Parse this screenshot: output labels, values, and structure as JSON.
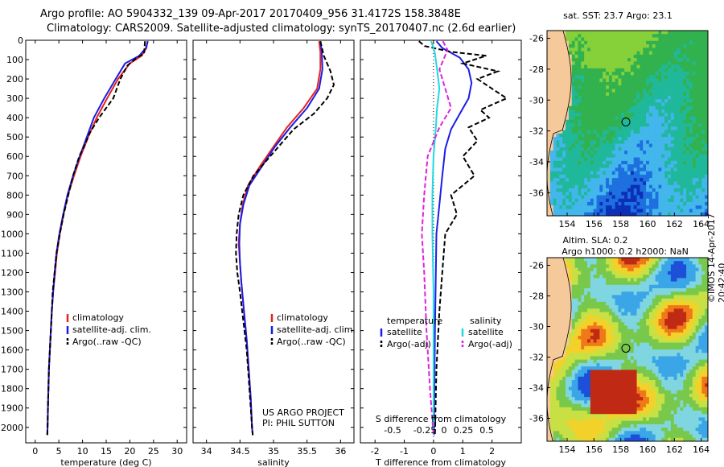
{
  "titles": {
    "line1": "Argo profile: AO 5904332_139 09-Apr-2017 20170409_956 31.4172S 158.3848E",
    "line2": "Climatology: CARS2009. Satellite-adjusted climatology: synTS_20170407.nc (2.6d earlier)"
  },
  "colors": {
    "climatology": "#e8231c",
    "satellite": "#1c1ce8",
    "argo": "#000000",
    "sal_satellite": "#22d8e0",
    "sal_argo": "#e020e0"
  },
  "chart_data": [
    {
      "type": "line",
      "name": "temperature",
      "xlabel": "temperature (deg C)",
      "ylabel": "",
      "xlim": [
        -2,
        32
      ],
      "ylim": [
        2080,
        0
      ],
      "xticks": [
        "0",
        "5",
        "10",
        "15",
        "20",
        "25",
        "30"
      ],
      "yticks": [
        "0",
        "100",
        "200",
        "300",
        "400",
        "500",
        "600",
        "700",
        "800",
        "900",
        "1000",
        "1100",
        "1200",
        "1300",
        "1400",
        "1500",
        "1600",
        "1700",
        "1800",
        "1900",
        "2000"
      ],
      "legend": [
        "climatology",
        "satellite-adj. clim.",
        "Argo(..raw -QC)"
      ],
      "series": [
        {
          "name": "climatology",
          "style": "solid",
          "points": [
            [
              23.7,
              5
            ],
            [
              23.5,
              40
            ],
            [
              22.5,
              80
            ],
            [
              20.0,
              120
            ],
            [
              17.5,
              200
            ],
            [
              15.2,
              300
            ],
            [
              13.0,
              400
            ],
            [
              11.2,
              500
            ],
            [
              9.6,
              600
            ],
            [
              8.2,
              700
            ],
            [
              6.9,
              800
            ],
            [
              6.0,
              900
            ],
            [
              5.2,
              1000
            ],
            [
              4.6,
              1100
            ],
            [
              4.2,
              1200
            ],
            [
              3.8,
              1300
            ],
            [
              3.5,
              1400
            ],
            [
              3.3,
              1500
            ],
            [
              3.1,
              1600
            ],
            [
              2.9,
              1700
            ],
            [
              2.8,
              1800
            ],
            [
              2.7,
              1900
            ],
            [
              2.6,
              2000
            ],
            [
              2.55,
              2040
            ]
          ]
        },
        {
          "name": "satellite-adj. clim.",
          "style": "solid",
          "points": [
            [
              23.8,
              5
            ],
            [
              23.4,
              40
            ],
            [
              22.0,
              80
            ],
            [
              19.0,
              120
            ],
            [
              17.0,
              200
            ],
            [
              14.6,
              300
            ],
            [
              12.4,
              400
            ],
            [
              10.9,
              500
            ],
            [
              9.4,
              600
            ],
            [
              8.0,
              700
            ],
            [
              6.8,
              800
            ],
            [
              5.9,
              900
            ],
            [
              5.1,
              1000
            ],
            [
              4.5,
              1100
            ],
            [
              4.1,
              1200
            ],
            [
              3.8,
              1300
            ],
            [
              3.5,
              1400
            ],
            [
              3.3,
              1500
            ],
            [
              3.1,
              1600
            ],
            [
              2.9,
              1700
            ],
            [
              2.8,
              1800
            ],
            [
              2.7,
              1900
            ],
            [
              2.6,
              2000
            ],
            [
              2.55,
              2040
            ]
          ]
        },
        {
          "name": "Argo(..raw -QC)",
          "style": "dash",
          "points": [
            [
              23.2,
              5
            ],
            [
              23.1,
              40
            ],
            [
              23.0,
              70
            ],
            [
              21.5,
              90
            ],
            [
              19.5,
              130
            ],
            [
              18.0,
              200
            ],
            [
              16.5,
              300
            ],
            [
              13.5,
              400
            ],
            [
              11.5,
              480
            ],
            [
              10.5,
              540
            ],
            [
              9.3,
              600
            ],
            [
              8.0,
              700
            ],
            [
              7.0,
              800
            ],
            [
              6.0,
              900
            ],
            [
              5.2,
              1000
            ],
            [
              4.5,
              1100
            ],
            [
              4.1,
              1200
            ],
            [
              3.7,
              1300
            ],
            [
              3.5,
              1400
            ],
            [
              3.3,
              1500
            ],
            [
              3.1,
              1600
            ],
            [
              2.9,
              1700
            ],
            [
              2.8,
              1800
            ],
            [
              2.7,
              1900
            ],
            [
              2.6,
              2000
            ],
            [
              2.55,
              2040
            ]
          ]
        }
      ]
    },
    {
      "type": "line",
      "name": "salinity",
      "xlabel": "salinity",
      "xlim": [
        33.8,
        36.2
      ],
      "ylim": [
        2080,
        0
      ],
      "xticks": [
        "34",
        "34.5",
        "35",
        "35.5",
        "36"
      ],
      "legend": [
        "climatology",
        "satellite-adj. clim.",
        "Argo(..raw -QC)"
      ],
      "series": [
        {
          "name": "climatology",
          "style": "solid",
          "points": [
            [
              35.68,
              5
            ],
            [
              35.7,
              60
            ],
            [
              35.7,
              150
            ],
            [
              35.65,
              250
            ],
            [
              35.45,
              350
            ],
            [
              35.2,
              450
            ],
            [
              35.0,
              550
            ],
            [
              34.8,
              650
            ],
            [
              34.62,
              750
            ],
            [
              34.54,
              850
            ],
            [
              34.5,
              950
            ],
            [
              34.48,
              1050
            ],
            [
              34.5,
              1150
            ],
            [
              34.52,
              1250
            ],
            [
              34.56,
              1400
            ],
            [
              34.6,
              1550
            ],
            [
              34.63,
              1700
            ],
            [
              34.66,
              1850
            ],
            [
              34.68,
              2000
            ],
            [
              34.69,
              2040
            ]
          ]
        },
        {
          "name": "satellite-adj. clim.",
          "style": "solid",
          "points": [
            [
              35.7,
              5
            ],
            [
              35.72,
              60
            ],
            [
              35.73,
              150
            ],
            [
              35.68,
              250
            ],
            [
              35.5,
              350
            ],
            [
              35.25,
              450
            ],
            [
              35.02,
              550
            ],
            [
              34.83,
              650
            ],
            [
              34.64,
              750
            ],
            [
              34.55,
              850
            ],
            [
              34.5,
              950
            ],
            [
              34.49,
              1050
            ],
            [
              34.5,
              1150
            ],
            [
              34.52,
              1250
            ],
            [
              34.56,
              1400
            ],
            [
              34.6,
              1550
            ],
            [
              34.63,
              1700
            ],
            [
              34.66,
              1850
            ],
            [
              34.68,
              2000
            ],
            [
              34.69,
              2040
            ]
          ]
        },
        {
          "name": "Argo(..raw -QC)",
          "style": "dash",
          "points": [
            [
              35.7,
              5
            ],
            [
              35.75,
              80
            ],
            [
              35.85,
              160
            ],
            [
              35.9,
              230
            ],
            [
              35.8,
              300
            ],
            [
              35.6,
              380
            ],
            [
              35.3,
              460
            ],
            [
              35.1,
              540
            ],
            [
              34.9,
              620
            ],
            [
              34.7,
              700
            ],
            [
              34.55,
              800
            ],
            [
              34.48,
              900
            ],
            [
              34.45,
              1000
            ],
            [
              34.44,
              1100
            ],
            [
              34.46,
              1200
            ],
            [
              34.5,
              1300
            ],
            [
              34.55,
              1450
            ],
            [
              34.6,
              1600
            ],
            [
              34.63,
              1750
            ],
            [
              34.66,
              1900
            ],
            [
              34.68,
              2000
            ],
            [
              34.69,
              2040
            ]
          ]
        }
      ],
      "annotations": [
        "US ARGO PROJECT",
        "PI: PHIL SUTTON"
      ]
    },
    {
      "type": "line",
      "name": "difference",
      "xlabel": "T difference from climatology",
      "secondary_xlabel": "S difference from climatology",
      "xlim": [
        -2.5,
        3
      ],
      "ylim": [
        2080,
        0
      ],
      "xticks": [
        "-2",
        "-1",
        "0",
        "1",
        "2"
      ],
      "secondary_xticks": [
        "-0.5",
        "-0.25",
        "0",
        "0.25",
        "0.5"
      ],
      "legend_temperature": {
        "heading": "temperature",
        "items": [
          "satellite",
          "Argo(-adj)"
        ]
      },
      "legend_salinity": {
        "heading": "salinity",
        "items": [
          "satellite",
          "Argo(-adj)"
        ]
      },
      "series": [
        {
          "name": "T satellite",
          "style": "solid",
          "points": [
            [
              0.1,
              5
            ],
            [
              0.3,
              40
            ],
            [
              0.9,
              90
            ],
            [
              1.2,
              150
            ],
            [
              1.3,
              220
            ],
            [
              1.2,
              300
            ],
            [
              0.9,
              380
            ],
            [
              0.6,
              460
            ],
            [
              0.4,
              560
            ],
            [
              0.3,
              700
            ],
            [
              0.2,
              850
            ],
            [
              0.1,
              1000
            ],
            [
              0.08,
              1200
            ],
            [
              0.05,
              1500
            ],
            [
              0.03,
              1800
            ],
            [
              0.02,
              2040
            ]
          ]
        },
        {
          "name": "T Argo(-adj)",
          "style": "dash",
          "points": [
            [
              -0.5,
              5
            ],
            [
              -0.3,
              30
            ],
            [
              0.6,
              60
            ],
            [
              1.8,
              80
            ],
            [
              1.0,
              120
            ],
            [
              2.2,
              160
            ],
            [
              1.5,
              200
            ],
            [
              2.0,
              250
            ],
            [
              2.5,
              300
            ],
            [
              1.6,
              360
            ],
            [
              1.9,
              400
            ],
            [
              1.2,
              450
            ],
            [
              1.5,
              520
            ],
            [
              1.0,
              600
            ],
            [
              1.4,
              700
            ],
            [
              0.6,
              800
            ],
            [
              0.8,
              900
            ],
            [
              0.4,
              1000
            ],
            [
              0.3,
              1200
            ],
            [
              0.2,
              1400
            ],
            [
              0.1,
              1700
            ],
            [
              0.05,
              2040
            ]
          ]
        },
        {
          "name": "S satellite",
          "style": "solid",
          "points": [
            [
              -0.02,
              5
            ],
            [
              0.01,
              60
            ],
            [
              0.03,
              150
            ],
            [
              0.05,
              250
            ],
            [
              0.03,
              350
            ],
            [
              0.02,
              450
            ],
            [
              0.0,
              600
            ],
            [
              -0.01,
              800
            ],
            [
              -0.01,
              1000
            ],
            [
              0.0,
              1300
            ],
            [
              0.0,
              1700
            ],
            [
              0.0,
              2040
            ]
          ]
        },
        {
          "name": "S Argo(-adj)",
          "style": "dash",
          "points": [
            [
              0.08,
              5
            ],
            [
              0.12,
              50
            ],
            [
              0.05,
              150
            ],
            [
              0.1,
              250
            ],
            [
              0.15,
              350
            ],
            [
              0.05,
              450
            ],
            [
              -0.05,
              600
            ],
            [
              -0.08,
              800
            ],
            [
              -0.1,
              1000
            ],
            [
              -0.08,
              1200
            ],
            [
              -0.06,
              1500
            ],
            [
              -0.03,
              1800
            ],
            [
              0.0,
              2040
            ]
          ]
        }
      ]
    },
    {
      "type": "heatmap",
      "name": "sst_map",
      "title": "sat. SST: 23.7 Argo: 23.1",
      "xticks": [
        "154",
        "156",
        "158",
        "160",
        "162",
        "164"
      ],
      "yticks": [
        "-26",
        "-28",
        "-30",
        "-32",
        "-34",
        "-36"
      ],
      "xlim": [
        152.5,
        164.5
      ],
      "ylim": [
        -37.5,
        -25.5
      ],
      "profile_location": [
        158.38,
        -31.42
      ]
    },
    {
      "type": "heatmap",
      "name": "sla_map",
      "title1": "Altim. SLA: 0.2",
      "title2": "Argo h1000: 0.2 h2000: NaN",
      "xticks": [
        "154",
        "156",
        "158",
        "160",
        "162",
        "164"
      ],
      "yticks": [
        "-26",
        "-28",
        "-30",
        "-32",
        "-34",
        "-36"
      ],
      "xlim": [
        152.5,
        164.5
      ],
      "ylim": [
        -37.5,
        -25.5
      ],
      "profile_location": [
        158.38,
        -31.42
      ]
    }
  ],
  "side_text": {
    "credit": "©IMOS 14-Apr-2017 20:42:40"
  }
}
